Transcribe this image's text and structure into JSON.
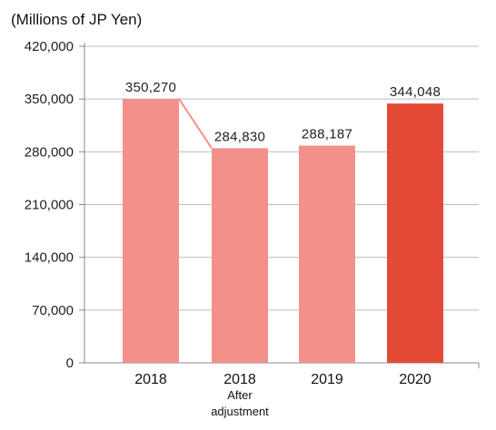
{
  "chart_data": {
    "type": "bar",
    "unit_label": "(Millions of JP Yen)",
    "categories": [
      "2018",
      "2018",
      "2019",
      "2020"
    ],
    "category_sublabels": [
      "",
      "After adjustment",
      "",
      ""
    ],
    "values": [
      350270,
      284830,
      288187,
      344048
    ],
    "value_labels": [
      "350,270",
      "284,830",
      "288,187",
      "344,048"
    ],
    "ylim": [
      0,
      420000
    ],
    "yticks": [
      0,
      70000,
      140000,
      210000,
      280000,
      350000,
      420000
    ],
    "ytick_labels": [
      "0",
      "70,000",
      "140,000",
      "210,000",
      "280,000",
      "350,000",
      "420,000"
    ],
    "grid": true,
    "colors": [
      "#f4908a",
      "#f4908a",
      "#f4908a",
      "#e34a36"
    ],
    "connector": {
      "from": 0,
      "to": 1,
      "color": "#f4908a"
    }
  }
}
